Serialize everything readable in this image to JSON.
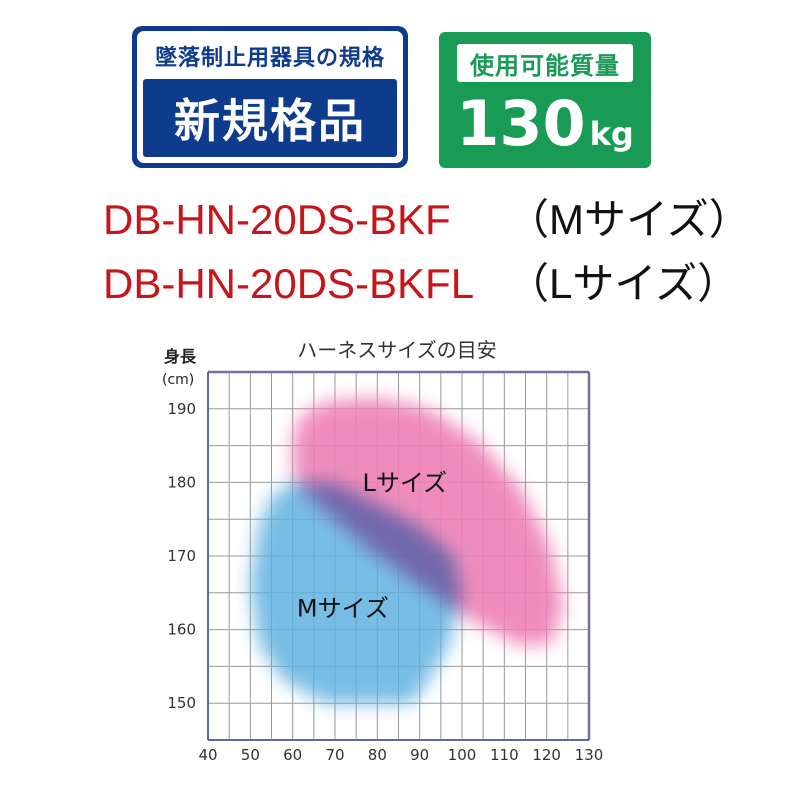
{
  "badges": {
    "standard": {
      "top": "墜落制止用器具の規格",
      "main": "新規格品"
    },
    "capacity": {
      "label": "使用可能質量",
      "value": "130",
      "unit": "kg"
    }
  },
  "models": [
    {
      "code": "DB-HN-20DS-BKF",
      "size": "（Mサイズ）"
    },
    {
      "code": "DB-HN-20DS-BKFL",
      "size": "（Lサイズ）"
    }
  ],
  "chart_data": {
    "type": "area",
    "title": "ハーネスサイズの目安",
    "ylabel_line1": "身長",
    "ylabel_line2": "(cm)",
    "xlabel": "",
    "xlim": [
      40,
      130
    ],
    "ylim": [
      145,
      195
    ],
    "x_ticks": [
      40,
      50,
      60,
      70,
      80,
      90,
      100,
      110,
      120,
      130
    ],
    "y_ticks": [
      150,
      160,
      170,
      180,
      190
    ],
    "grid": true,
    "regions": [
      {
        "name": "Lサイズ",
        "color": "#ee7fb6",
        "outline": [
          [
            60,
            186
          ],
          [
            62,
            189
          ],
          [
            68,
            191
          ],
          [
            80,
            191.5
          ],
          [
            92,
            190
          ],
          [
            104,
            185.5
          ],
          [
            114,
            179
          ],
          [
            121,
            171
          ],
          [
            124,
            163
          ],
          [
            121,
            158
          ],
          [
            113,
            158
          ],
          [
            100,
            162
          ],
          [
            90,
            166
          ],
          [
            78,
            171
          ],
          [
            70,
            175
          ],
          [
            62,
            179
          ],
          [
            60,
            182
          ]
        ]
      },
      {
        "name": "Mサイズ",
        "color": "#5aaee0",
        "outline": [
          [
            52,
            174
          ],
          [
            55,
            178
          ],
          [
            60,
            180
          ],
          [
            70,
            180
          ],
          [
            80,
            177
          ],
          [
            90,
            174
          ],
          [
            98,
            170
          ],
          [
            100,
            165
          ],
          [
            97,
            158
          ],
          [
            92,
            153
          ],
          [
            88,
            150
          ],
          [
            68,
            150
          ],
          [
            58,
            153
          ],
          [
            52,
            158
          ],
          [
            50,
            166
          ]
        ]
      }
    ]
  }
}
